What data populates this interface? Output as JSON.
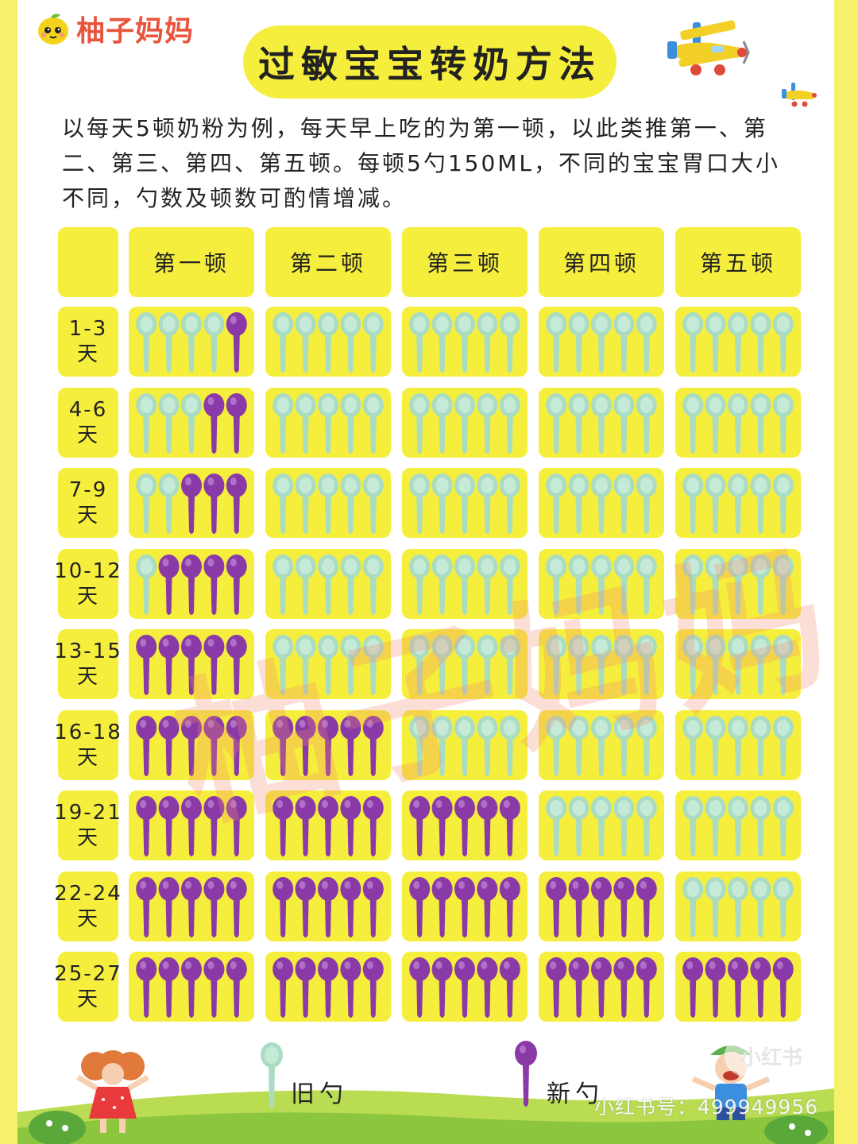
{
  "brand": {
    "logo_text": "柚子妈妈"
  },
  "title": "过敏宝宝转奶方法",
  "intro": "以每天5顿奶粉为例，每天早上吃的为第一顿，以此类推第一、第二、第三、第四、第五顿。每顿5勺150ML，不同的宝宝胃口大小不同，勺数及顿数可酌情增减。",
  "table": {
    "meals": [
      "第一顿",
      "第二顿",
      "第三顿",
      "第四顿",
      "第五顿"
    ],
    "spoons_per_meal": 5,
    "rows": [
      {
        "range": "1-3",
        "unit": "天",
        "new_spoons": [
          1,
          0,
          0,
          0,
          0
        ]
      },
      {
        "range": "4-6",
        "unit": "天",
        "new_spoons": [
          2,
          0,
          0,
          0,
          0
        ]
      },
      {
        "range": "7-9",
        "unit": "天",
        "new_spoons": [
          3,
          0,
          0,
          0,
          0
        ]
      },
      {
        "range": "10-12",
        "unit": "天",
        "new_spoons": [
          4,
          0,
          0,
          0,
          0
        ]
      },
      {
        "range": "13-15",
        "unit": "天",
        "new_spoons": [
          5,
          0,
          0,
          0,
          0
        ]
      },
      {
        "range": "16-18",
        "unit": "天",
        "new_spoons": [
          5,
          5,
          0,
          0,
          0
        ]
      },
      {
        "range": "19-21",
        "unit": "天",
        "new_spoons": [
          5,
          5,
          5,
          0,
          0
        ]
      },
      {
        "range": "22-24",
        "unit": "天",
        "new_spoons": [
          5,
          5,
          5,
          5,
          0
        ]
      },
      {
        "range": "25-27",
        "unit": "天",
        "new_spoons": [
          5,
          5,
          5,
          5,
          5
        ]
      }
    ]
  },
  "legend": {
    "old_label": "旧勺",
    "new_label": "新勺"
  },
  "colors": {
    "background": "#f7f06a",
    "cell": "#f6ee3c",
    "old_spoon": "#a9dcc2",
    "new_spoon": "#8a3aa6",
    "logo_text": "#e8553c"
  },
  "watermark": {
    "text": "柚子妈妈",
    "platform": "小红书",
    "id": "小红书号：499949956"
  },
  "icons": [
    "lemon-logo-icon",
    "airplane-icon",
    "spoon-icon",
    "girl-illustration",
    "boy-illustration"
  ]
}
